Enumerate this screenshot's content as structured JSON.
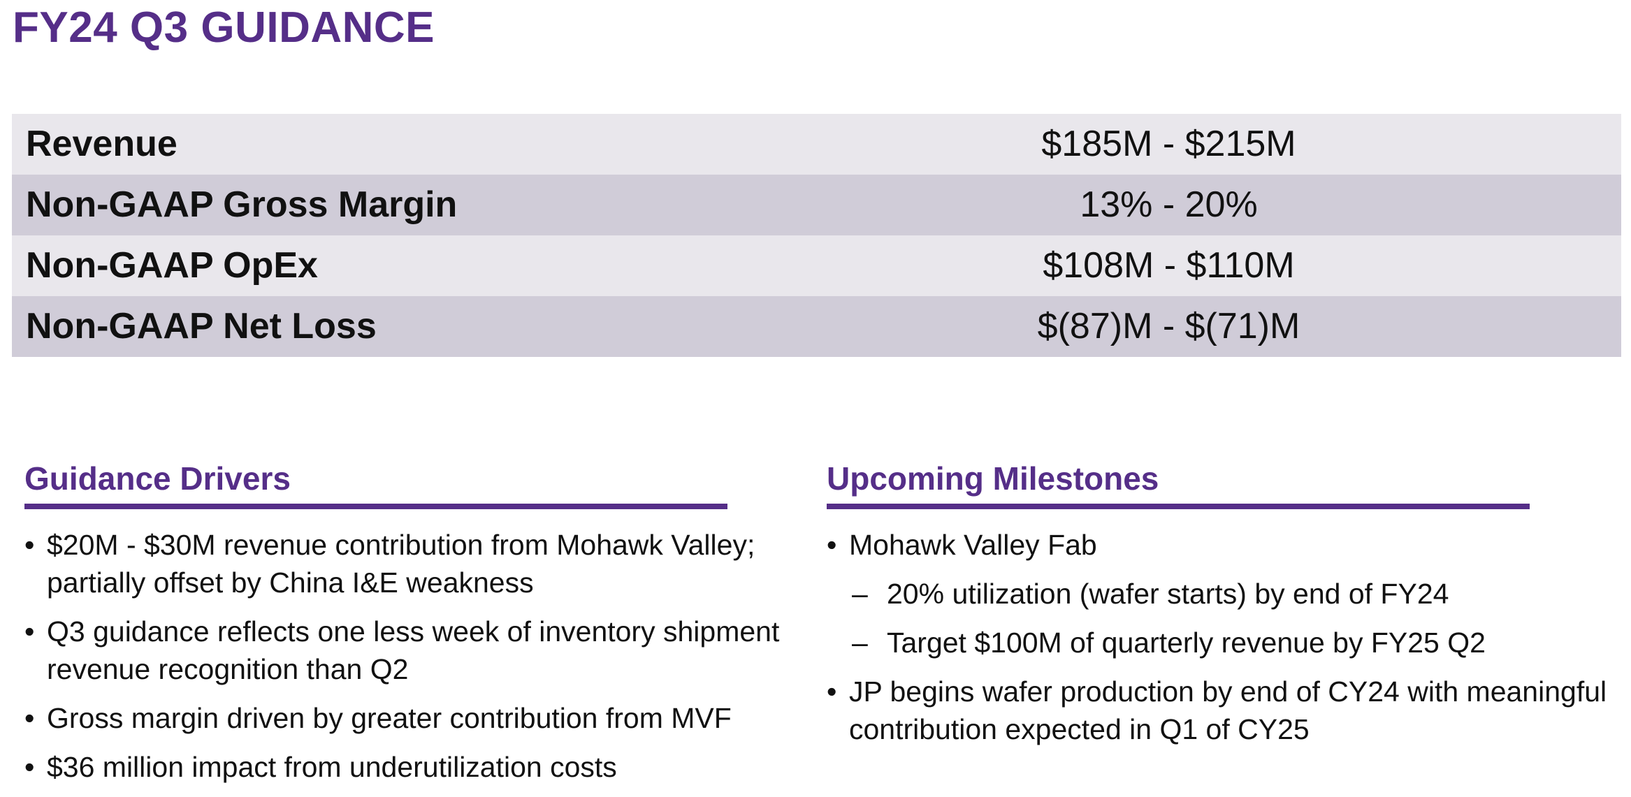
{
  "title": "FY24 Q3 GUIDANCE",
  "guidance_table": {
    "rows": [
      {
        "metric": "Revenue",
        "value": "$185M - $215M"
      },
      {
        "metric": "Non-GAAP Gross Margin",
        "value": "13% - 20%"
      },
      {
        "metric": "Non-GAAP OpEx",
        "value": "$108M - $110M"
      },
      {
        "metric": "Non-GAAP Net Loss",
        "value": "$(87)M - $(71)M"
      }
    ]
  },
  "drivers": {
    "header": "Guidance Drivers",
    "items": [
      {
        "line1": "$20M - $30M revenue contribution from Mohawk Valley;",
        "line2": "partially offset by China I&E weakness"
      },
      {
        "line1": "Q3 guidance reflects one less week of inventory shipment",
        "line2": "revenue recognition than Q2"
      },
      {
        "line1": "Gross margin driven by greater contribution from MVF"
      },
      {
        "line1": "$36 million impact from underutilization costs"
      }
    ]
  },
  "milestones": {
    "header": "Upcoming Milestones",
    "item1": "Mohawk Valley Fab",
    "sub1": "20% utilization (wafer starts) by end of FY24",
    "sub2": "Target $100M of quarterly revenue by FY25 Q2",
    "item2_line1": "JP begins wafer production by end of CY24 with meaningful",
    "item2_line2": "contribution expected in Q1 of CY25"
  },
  "colors": {
    "accent": "#552e88",
    "row_light": "#e9e7ec",
    "row_dark": "#d0ccd8"
  }
}
